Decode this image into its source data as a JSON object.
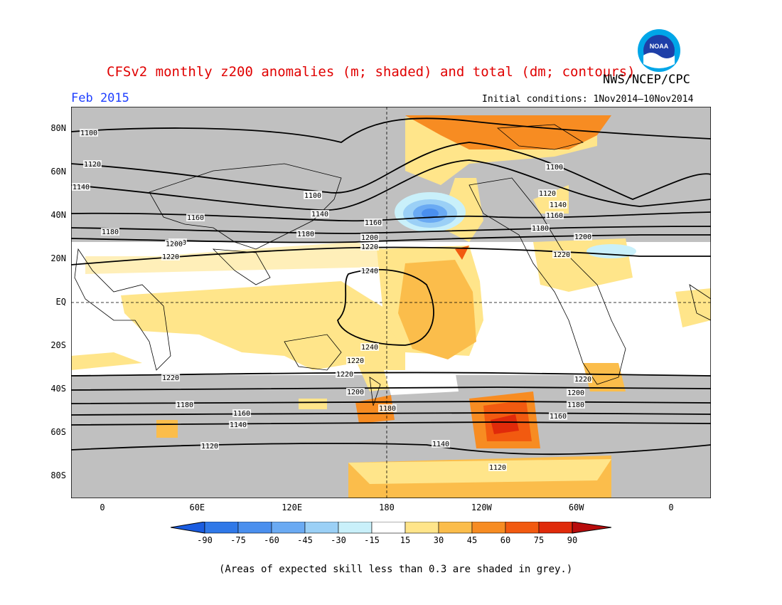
{
  "header": {
    "title": "CFSv2 monthly z200 anomalies (m; shaded) and total (dm; contours)",
    "agency": "NWS/NCEP/CPC",
    "month": "Feb 2015",
    "initial_conditions": "Initial conditions: 1Nov2014—10Nov2014",
    "logo_text": "NOAA"
  },
  "footnote": "(Areas of expected skill less than 0.3 are shaded in grey.)",
  "map": {
    "lat_labels": [
      "80N",
      "60N",
      "40N",
      "20N",
      "EQ",
      "20S",
      "40S",
      "60S",
      "80S"
    ],
    "lat_values": [
      80,
      60,
      40,
      20,
      0,
      -20,
      -40,
      -60,
      -80
    ],
    "lon_labels": [
      "0",
      "60E",
      "120E",
      "180",
      "120W",
      "60W",
      "0"
    ],
    "lon_values": [
      0,
      60,
      120,
      180,
      240,
      300,
      360
    ],
    "contour_labels": [
      "1100",
      "1120",
      "1140",
      "1160",
      "1180",
      "1200",
      "1220",
      "1240"
    ],
    "colors": {
      "grey_low_skill": "#c0c0c0",
      "contour": "#000000"
    }
  },
  "colorbar": {
    "levels": [
      "-90",
      "-75",
      "-60",
      "-45",
      "-30",
      "-15",
      "15",
      "30",
      "45",
      "60",
      "75",
      "90"
    ],
    "colors": [
      "#1a5ce0",
      "#2f78e8",
      "#4a8fee",
      "#6aaaf3",
      "#9bd0f6",
      "#c9f0fa",
      "#ffffff",
      "#ffe58a",
      "#fbbd4b",
      "#f78c22",
      "#f25a10",
      "#e02a0a",
      "#b80c0c"
    ]
  }
}
